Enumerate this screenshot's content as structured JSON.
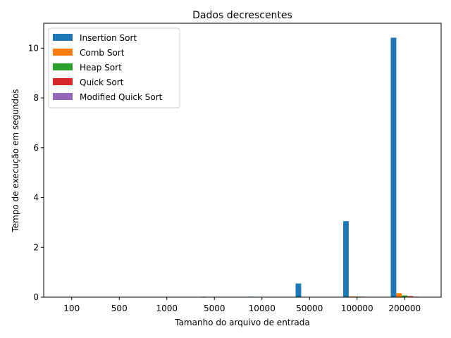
{
  "chart_data": {
    "type": "bar",
    "title": "Dados decrescentes",
    "xlabel": "Tamanho do arquivo de entrada",
    "ylabel": "Tempo de execução em segundos",
    "categories": [
      "100",
      "500",
      "1000",
      "5000",
      "10000",
      "50000",
      "100000",
      "200000"
    ],
    "ylim": [
      0,
      11
    ],
    "yticks": [
      0,
      2,
      4,
      6,
      8,
      10
    ],
    "grid": false,
    "legend_position": "top-left",
    "series": [
      {
        "name": "Insertion Sort",
        "color": "#1f77b4",
        "values": [
          0.0003,
          0.002,
          0.003,
          0.02,
          0.02,
          0.55,
          3.05,
          10.42
        ]
      },
      {
        "name": "Comb Sort",
        "color": "#ff7f0e",
        "values": [
          0.0,
          0.0,
          0.0,
          0.001,
          0.002,
          0.012,
          0.03,
          0.16
        ]
      },
      {
        "name": "Heap Sort",
        "color": "#2ca02c",
        "values": [
          0.0,
          0.0,
          0.0,
          0.001,
          0.002,
          0.01,
          0.025,
          0.07
        ]
      },
      {
        "name": "Quick Sort",
        "color": "#d62728",
        "values": [
          0.0,
          0.0,
          0.0,
          0.001,
          0.002,
          0.008,
          0.02,
          0.04
        ]
      },
      {
        "name": "Modified Quick Sort",
        "color": "#9467bd",
        "values": [
          0.0,
          0.0,
          0.0,
          0.001,
          0.001,
          0.005,
          0.01,
          0.02
        ]
      }
    ]
  }
}
